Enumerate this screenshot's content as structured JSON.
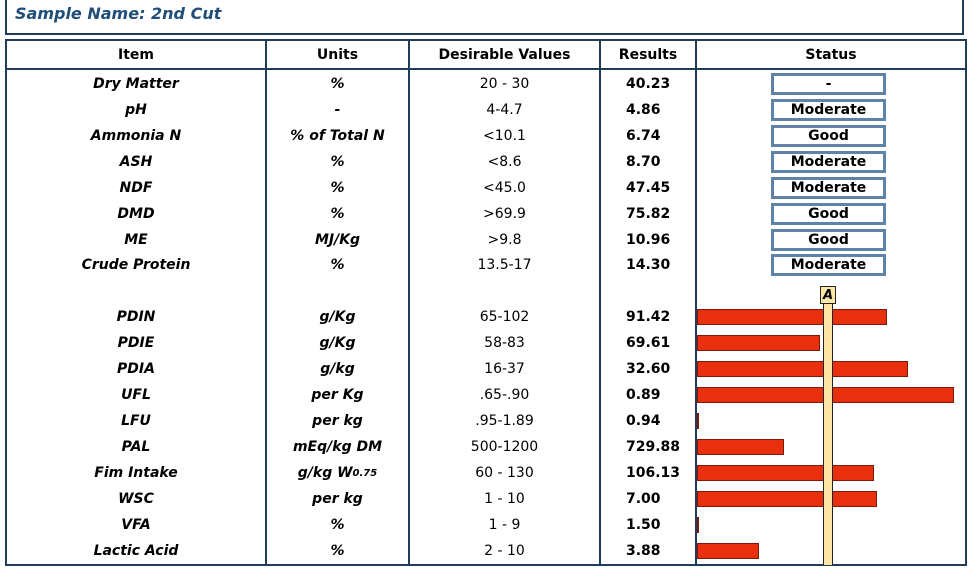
{
  "sample": {
    "title": "Sample Name: 2nd Cut"
  },
  "columns": {
    "item": "Item",
    "units": "Units",
    "desirable": "Desirable Values",
    "results": "Results",
    "status": "Status"
  },
  "scale_label": "A",
  "status_rows": [
    {
      "item": "Dry Matter",
      "units": "%",
      "desirable": "20 - 30",
      "result": "40.23",
      "status": "-"
    },
    {
      "item": "pH",
      "units": "-",
      "desirable": "4-4.7",
      "result": "4.86",
      "status": "Moderate"
    },
    {
      "item": "Ammonia N",
      "units": "% of Total N",
      "desirable": "<10.1",
      "result": "6.74",
      "status": "Good"
    },
    {
      "item": "ASH",
      "units": "%",
      "desirable": "<8.6",
      "result": "8.70",
      "status": "Moderate"
    },
    {
      "item": "NDF",
      "units": "%",
      "desirable": "<45.0",
      "result": "47.45",
      "status": "Moderate"
    },
    {
      "item": "DMD",
      "units": "%",
      "desirable": ">69.9",
      "result": "75.82",
      "status": "Good"
    },
    {
      "item": "ME",
      "units": "MJ/Kg",
      "desirable": ">9.8",
      "result": "10.96",
      "status": "Good"
    },
    {
      "item": "Crude Protein",
      "units": "%",
      "desirable": "13.5-17",
      "result": "14.30",
      "status": "Moderate"
    }
  ],
  "bar_rows": [
    {
      "item": "PDIN",
      "units": "g/Kg",
      "desirable": "65-102",
      "result": "91.42",
      "bar_fraction": 0.74
    },
    {
      "item": "PDIE",
      "units": "g/Kg",
      "desirable": "58-83",
      "result": "69.61",
      "bar_fraction": 0.48
    },
    {
      "item": "PDIA",
      "units": "g/kg",
      "desirable": "16-37",
      "result": "32.60",
      "bar_fraction": 0.82
    },
    {
      "item": "UFL",
      "units": "per Kg",
      "desirable": ".65-.90",
      "result": "0.89",
      "bar_fraction": 1.0
    },
    {
      "item": "LFU",
      "units": "per kg",
      "desirable": ".95-1.89",
      "result": "0.94",
      "bar_fraction": 0.0
    },
    {
      "item": "PAL",
      "units": "mEq/kg DM",
      "desirable": "500-1200",
      "result": "729.88",
      "bar_fraction": 0.34
    },
    {
      "item": "Fim Intake",
      "units": "g/kg W",
      "units_sup": "0.75",
      "desirable": "60 - 130",
      "result": "106.13",
      "bar_fraction": 0.69
    },
    {
      "item": "WSC",
      "units": "per kg",
      "desirable": "1 - 10",
      "result": "7.00",
      "bar_fraction": 0.7
    },
    {
      "item": "VFA",
      "units": "%",
      "desirable": "1 - 9",
      "result": "1.50",
      "bar_fraction": 0.0
    },
    {
      "item": "Lactic Acid",
      "units": "%",
      "desirable": "2 - 10",
      "result": "3.88",
      "bar_fraction": 0.24
    }
  ]
}
